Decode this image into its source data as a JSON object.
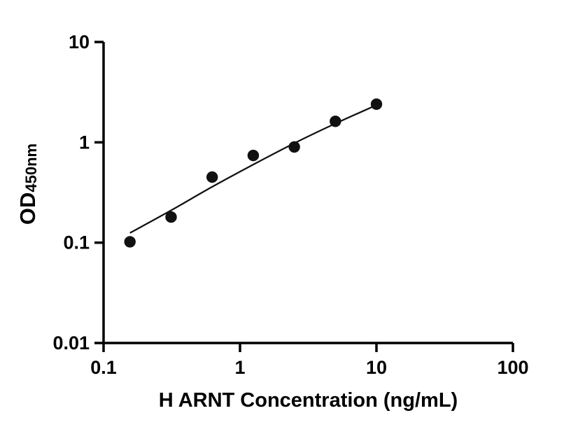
{
  "chart_data": {
    "type": "scatter",
    "title": "",
    "xlabel": "H ARNT Concentration (ng/mL)",
    "ylabel": "OD450nm",
    "ylabel_main": "OD",
    "ylabel_sub": "450nm",
    "xscale": "log",
    "yscale": "log",
    "xlim": [
      0.1,
      100
    ],
    "ylim": [
      0.01,
      10
    ],
    "x_ticks": {
      "values": [
        0.1,
        1,
        10,
        100
      ],
      "labels": [
        "0.1",
        "1",
        "10",
        "100"
      ]
    },
    "y_ticks": {
      "values": [
        0.01,
        0.1,
        1,
        10
      ],
      "labels": [
        "10",
        "1",
        "0.1",
        "0.01"
      ],
      "labels_by_value": [
        "0.01",
        "0.1",
        "1",
        "10"
      ]
    },
    "points": {
      "x": [
        0.156,
        0.3125,
        0.625,
        1.25,
        2.5,
        5,
        10
      ],
      "y": [
        0.102,
        0.18,
        0.45,
        0.74,
        0.9,
        1.62,
        2.4
      ]
    },
    "fit_curve": {
      "x": [
        0.156,
        0.3125,
        0.625,
        1.25,
        2.5,
        5,
        10
      ],
      "y": [
        0.125,
        0.21,
        0.36,
        0.6,
        0.98,
        1.54,
        2.35
      ]
    },
    "marker_color": "#111111",
    "line_color": "#111111",
    "axis_color": "#000000",
    "grid": false,
    "legend": null
  }
}
